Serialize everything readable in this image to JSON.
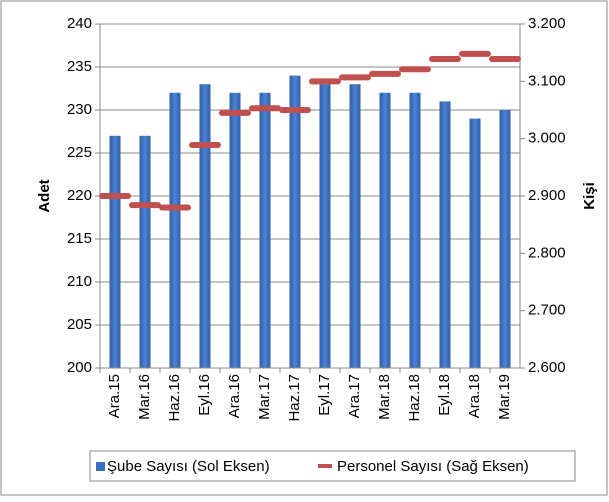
{
  "chart_data": {
    "type": "bar_line",
    "categories": [
      "Ara.15",
      "Mar.16",
      "Haz.16",
      "Eyl.16",
      "Ara.16",
      "Mar.17",
      "Haz.17",
      "Eyl.17",
      "Ara.17",
      "Mar.18",
      "Haz.18",
      "Eyl.18",
      "Ara.18",
      "Mar.19"
    ],
    "series": [
      {
        "name": "Şube Sayısı (Sol Eksen)",
        "color": "#3a6fbf",
        "values": [
          227,
          227,
          232,
          233,
          232,
          232,
          234,
          233,
          233,
          232,
          232,
          231,
          229,
          230
        ]
      },
      {
        "name": "Personel Sayısı (Sağ Eksen)",
        "color": "#c0504d",
        "axis": "y2",
        "values": [
          2900,
          2884,
          2880,
          2989,
          3045,
          3053,
          3050,
          3100,
          3107,
          3113,
          3121,
          3139,
          3148,
          3139
        ]
      }
    ],
    "y_label": "Adet",
    "y2_label": "Kişi",
    "ylim": [
      200,
      240
    ],
    "yticks": [
      200,
      205,
      210,
      215,
      220,
      225,
      230,
      235,
      240
    ],
    "y2lim": [
      2600,
      3200
    ],
    "y2ticks": [
      {
        "value": 2600,
        "label": "2.600"
      },
      {
        "value": 2700,
        "label": "2.700"
      },
      {
        "value": 2800,
        "label": "2.800"
      },
      {
        "value": 2900,
        "label": "2.900"
      },
      {
        "value": 3000,
        "label": "3.000"
      },
      {
        "value": 3100,
        "label": "3.100"
      },
      {
        "value": 3200,
        "label": "3.200"
      }
    ],
    "grid": true,
    "legend": "bottom"
  }
}
